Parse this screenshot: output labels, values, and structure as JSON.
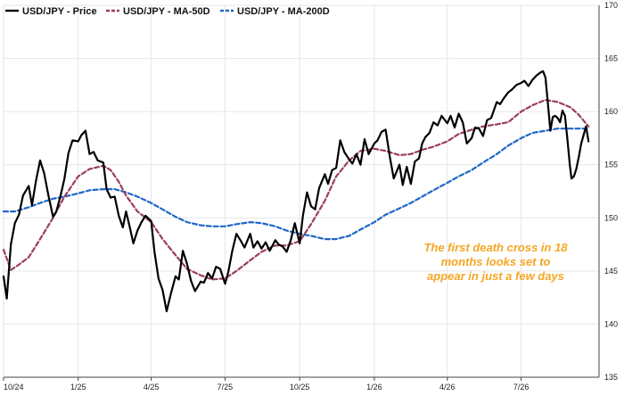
{
  "chart_data": {
    "type": "line",
    "title": "",
    "xlabel": "",
    "ylabel": "",
    "ylim": [
      135,
      170
    ],
    "y_ticks": [
      135,
      140,
      145,
      150,
      155,
      160,
      165,
      170
    ],
    "x_range": [
      "2024-10-01",
      "2026-10-05"
    ],
    "x_ticks": [
      {
        "label": "10/24",
        "date": "2024-10-01"
      },
      {
        "label": "1/25",
        "date": "2025-01-01"
      },
      {
        "label": "4/25",
        "date": "2025-04-01"
      },
      {
        "label": "7/25",
        "date": "2025-07-01"
      },
      {
        "label": "10/25",
        "date": "2025-10-01"
      },
      {
        "label": "1/26",
        "date": "2026-01-01"
      },
      {
        "label": "4/26",
        "date": "2026-04-01"
      },
      {
        "label": "7/26",
        "date": "2026-07-01"
      }
    ],
    "grid": true,
    "legend_position": "top-left",
    "annotation": {
      "lines": [
        "The first death cross in 18",
        "months looks set to",
        "appear in just a few days"
      ],
      "color": "#f5a623"
    },
    "series": [
      {
        "name": "USD/JPY - Price",
        "color": "#000000",
        "style": "solid",
        "points": [
          [
            "2024-10-01",
            144.5
          ],
          [
            "2024-10-05",
            142.4
          ],
          [
            "2024-10-10",
            147.5
          ],
          [
            "2024-10-15",
            149.5
          ],
          [
            "2024-10-20",
            150.3
          ],
          [
            "2024-10-25",
            152.1
          ],
          [
            "2024-11-01",
            153.0
          ],
          [
            "2024-11-05",
            151.2
          ],
          [
            "2024-11-10",
            153.5
          ],
          [
            "2024-11-15",
            155.4
          ],
          [
            "2024-11-20",
            154.2
          ],
          [
            "2024-11-25",
            152.2
          ],
          [
            "2024-12-01",
            150.1
          ],
          [
            "2024-12-05",
            150.6
          ],
          [
            "2024-12-10",
            152.0
          ],
          [
            "2024-12-15",
            153.7
          ],
          [
            "2024-12-20",
            156.1
          ],
          [
            "2024-12-25",
            157.3
          ],
          [
            "2025-01-01",
            157.2
          ],
          [
            "2025-01-05",
            157.8
          ],
          [
            "2025-01-10",
            158.2
          ],
          [
            "2025-01-15",
            156.0
          ],
          [
            "2025-01-20",
            156.2
          ],
          [
            "2025-01-25",
            155.4
          ],
          [
            "2025-02-01",
            155.2
          ],
          [
            "2025-02-05",
            152.7
          ],
          [
            "2025-02-10",
            151.9
          ],
          [
            "2025-02-15",
            152.0
          ],
          [
            "2025-02-20",
            150.2
          ],
          [
            "2025-02-25",
            149.1
          ],
          [
            "2025-03-01",
            150.6
          ],
          [
            "2025-03-05",
            149.3
          ],
          [
            "2025-03-10",
            147.6
          ],
          [
            "2025-03-15",
            148.8
          ],
          [
            "2025-03-20",
            149.6
          ],
          [
            "2025-03-25",
            150.2
          ],
          [
            "2025-04-01",
            149.7
          ],
          [
            "2025-04-05",
            146.8
          ],
          [
            "2025-04-10",
            144.3
          ],
          [
            "2025-04-15",
            143.2
          ],
          [
            "2025-04-20",
            141.2
          ],
          [
            "2025-04-25",
            142.8
          ],
          [
            "2025-05-01",
            144.5
          ],
          [
            "2025-05-05",
            144.2
          ],
          [
            "2025-05-10",
            146.9
          ],
          [
            "2025-05-15",
            145.7
          ],
          [
            "2025-05-20",
            144.1
          ],
          [
            "2025-05-25",
            143.1
          ],
          [
            "2025-06-01",
            144.0
          ],
          [
            "2025-06-05",
            143.9
          ],
          [
            "2025-06-10",
            144.8
          ],
          [
            "2025-06-15",
            144.3
          ],
          [
            "2025-06-20",
            145.4
          ],
          [
            "2025-06-25",
            145.2
          ],
          [
            "2025-07-01",
            143.8
          ],
          [
            "2025-07-05",
            144.9
          ],
          [
            "2025-07-10",
            146.9
          ],
          [
            "2025-07-15",
            148.5
          ],
          [
            "2025-07-20",
            147.9
          ],
          [
            "2025-07-25",
            147.2
          ],
          [
            "2025-08-01",
            148.5
          ],
          [
            "2025-08-05",
            147.2
          ],
          [
            "2025-08-10",
            147.8
          ],
          [
            "2025-08-15",
            147.1
          ],
          [
            "2025-08-20",
            147.7
          ],
          [
            "2025-08-25",
            146.9
          ],
          [
            "2025-09-01",
            147.9
          ],
          [
            "2025-09-05",
            147.5
          ],
          [
            "2025-09-10",
            147.3
          ],
          [
            "2025-09-15",
            146.8
          ],
          [
            "2025-09-20",
            147.9
          ],
          [
            "2025-09-25",
            149.5
          ],
          [
            "2025-10-01",
            147.6
          ],
          [
            "2025-10-05",
            150.2
          ],
          [
            "2025-10-10",
            152.4
          ],
          [
            "2025-10-15",
            151.1
          ],
          [
            "2025-10-20",
            150.8
          ],
          [
            "2025-10-25",
            152.8
          ],
          [
            "2025-11-01",
            154.1
          ],
          [
            "2025-11-05",
            153.2
          ],
          [
            "2025-11-10",
            154.5
          ],
          [
            "2025-11-15",
            154.7
          ],
          [
            "2025-11-20",
            157.3
          ],
          [
            "2025-11-25",
            156.2
          ],
          [
            "2025-12-01",
            155.5
          ],
          [
            "2025-12-05",
            155.1
          ],
          [
            "2025-12-10",
            156.0
          ],
          [
            "2025-12-15",
            155.0
          ],
          [
            "2025-12-20",
            157.4
          ],
          [
            "2025-12-25",
            156.0
          ],
          [
            "2026-01-01",
            157.0
          ],
          [
            "2026-01-05",
            157.3
          ],
          [
            "2026-01-10",
            158.1
          ],
          [
            "2026-01-15",
            158.3
          ],
          [
            "2026-01-20",
            155.8
          ],
          [
            "2026-01-25",
            153.7
          ],
          [
            "2026-02-01",
            155.0
          ],
          [
            "2026-02-05",
            153.1
          ],
          [
            "2026-02-10",
            154.8
          ],
          [
            "2026-02-15",
            153.2
          ],
          [
            "2026-02-20",
            155.3
          ],
          [
            "2026-02-25",
            155.6
          ],
          [
            "2026-03-01",
            157.0
          ],
          [
            "2026-03-05",
            157.6
          ],
          [
            "2026-03-10",
            158.0
          ],
          [
            "2026-03-15",
            159.0
          ],
          [
            "2026-03-20",
            158.7
          ],
          [
            "2026-03-25",
            159.6
          ],
          [
            "2026-04-01",
            158.9
          ],
          [
            "2026-04-05",
            159.6
          ],
          [
            "2026-04-10",
            158.5
          ],
          [
            "2026-04-15",
            159.8
          ],
          [
            "2026-04-20",
            159.0
          ],
          [
            "2026-04-25",
            157.0
          ],
          [
            "2026-05-01",
            157.5
          ],
          [
            "2026-05-05",
            158.5
          ],
          [
            "2026-05-10",
            158.4
          ],
          [
            "2026-05-15",
            157.7
          ],
          [
            "2026-05-20",
            159.2
          ],
          [
            "2026-05-25",
            159.4
          ],
          [
            "2026-06-01",
            160.9
          ],
          [
            "2026-06-05",
            160.7
          ],
          [
            "2026-06-10",
            161.3
          ],
          [
            "2026-06-15",
            161.8
          ],
          [
            "2026-06-20",
            162.1
          ],
          [
            "2026-06-25",
            162.5
          ],
          [
            "2026-07-01",
            162.7
          ],
          [
            "2026-07-05",
            162.9
          ],
          [
            "2026-07-10",
            162.4
          ],
          [
            "2026-07-15",
            163.0
          ],
          [
            "2026-07-20",
            163.4
          ],
          [
            "2026-07-25",
            163.7
          ],
          [
            "2026-07-28",
            163.8
          ],
          [
            "2026-07-31",
            163.2
          ],
          [
            "2026-08-03",
            160.7
          ],
          [
            "2026-08-06",
            158.2
          ],
          [
            "2026-08-09",
            159.5
          ],
          [
            "2026-08-12",
            159.6
          ],
          [
            "2026-08-15",
            159.4
          ],
          [
            "2026-08-18",
            159.0
          ],
          [
            "2026-08-21",
            160.1
          ],
          [
            "2026-08-24",
            159.6
          ],
          [
            "2026-08-27",
            157.4
          ],
          [
            "2026-08-30",
            155.0
          ],
          [
            "2026-09-01",
            153.7
          ],
          [
            "2026-09-04",
            153.9
          ],
          [
            "2026-09-07",
            154.6
          ],
          [
            "2026-09-10",
            155.7
          ],
          [
            "2026-09-13",
            157.0
          ],
          [
            "2026-09-16",
            157.8
          ],
          [
            "2026-09-19",
            158.6
          ],
          [
            "2026-09-22",
            157.2
          ]
        ]
      },
      {
        "name": "USD/JPY - MA-50D",
        "color": "#9a3d5b",
        "style": "dashed",
        "points": [
          [
            "2024-10-01",
            147.0
          ],
          [
            "2024-10-10",
            145.1
          ],
          [
            "2024-10-20",
            145.6
          ],
          [
            "2024-11-01",
            146.3
          ],
          [
            "2024-11-15",
            148.0
          ],
          [
            "2024-12-01",
            150.0
          ],
          [
            "2024-12-15",
            152.0
          ],
          [
            "2025-01-01",
            153.9
          ],
          [
            "2025-01-15",
            154.6
          ],
          [
            "2025-02-01",
            154.9
          ],
          [
            "2025-02-10",
            154.5
          ],
          [
            "2025-02-20",
            153.4
          ],
          [
            "2025-03-01",
            152.1
          ],
          [
            "2025-03-15",
            150.6
          ],
          [
            "2025-04-01",
            149.6
          ],
          [
            "2025-04-15",
            148.0
          ],
          [
            "2025-05-01",
            146.5
          ],
          [
            "2025-05-15",
            145.2
          ],
          [
            "2025-06-01",
            144.6
          ],
          [
            "2025-06-15",
            144.2
          ],
          [
            "2025-07-01",
            144.3
          ],
          [
            "2025-07-15",
            145.0
          ],
          [
            "2025-08-01",
            146.0
          ],
          [
            "2025-08-15",
            146.8
          ],
          [
            "2025-09-01",
            147.4
          ],
          [
            "2025-09-15",
            147.4
          ],
          [
            "2025-10-01",
            147.8
          ],
          [
            "2025-10-15",
            149.4
          ],
          [
            "2025-11-01",
            151.6
          ],
          [
            "2025-11-15",
            153.9
          ],
          [
            "2025-12-01",
            155.4
          ],
          [
            "2025-12-15",
            156.3
          ],
          [
            "2026-01-01",
            156.5
          ],
          [
            "2026-01-15",
            156.3
          ],
          [
            "2026-02-01",
            155.9
          ],
          [
            "2026-02-15",
            156.0
          ],
          [
            "2026-03-01",
            156.4
          ],
          [
            "2026-03-15",
            156.7
          ],
          [
            "2026-04-01",
            157.2
          ],
          [
            "2026-04-15",
            157.9
          ],
          [
            "2026-05-01",
            158.3
          ],
          [
            "2026-05-15",
            158.6
          ],
          [
            "2026-06-01",
            158.8
          ],
          [
            "2026-06-15",
            159.0
          ],
          [
            "2026-07-01",
            160.0
          ],
          [
            "2026-07-15",
            160.6
          ],
          [
            "2026-07-31",
            161.1
          ],
          [
            "2026-08-15",
            160.9
          ],
          [
            "2026-08-31",
            160.4
          ],
          [
            "2026-09-10",
            159.7
          ],
          [
            "2026-09-22",
            158.6
          ]
        ]
      },
      {
        "name": "USD/JPY - MA-200D",
        "color": "#1f66c8",
        "style": "dashed",
        "points": [
          [
            "2024-10-01",
            150.6
          ],
          [
            "2024-10-15",
            150.6
          ],
          [
            "2024-11-01",
            151.0
          ],
          [
            "2024-11-15",
            151.4
          ],
          [
            "2024-12-01",
            151.8
          ],
          [
            "2024-12-15",
            152.0
          ],
          [
            "2025-01-01",
            152.3
          ],
          [
            "2025-01-15",
            152.6
          ],
          [
            "2025-02-01",
            152.7
          ],
          [
            "2025-02-15",
            152.7
          ],
          [
            "2025-03-01",
            152.4
          ],
          [
            "2025-03-15",
            152.0
          ],
          [
            "2025-04-01",
            151.4
          ],
          [
            "2025-04-15",
            150.8
          ],
          [
            "2025-05-01",
            150.1
          ],
          [
            "2025-05-15",
            149.6
          ],
          [
            "2025-06-01",
            149.3
          ],
          [
            "2025-06-15",
            149.2
          ],
          [
            "2025-07-01",
            149.2
          ],
          [
            "2025-07-15",
            149.4
          ],
          [
            "2025-08-01",
            149.6
          ],
          [
            "2025-08-15",
            149.5
          ],
          [
            "2025-09-01",
            149.2
          ],
          [
            "2025-09-15",
            148.8
          ],
          [
            "2025-10-01",
            148.5
          ],
          [
            "2025-10-15",
            148.3
          ],
          [
            "2025-11-01",
            148.0
          ],
          [
            "2025-11-15",
            148.0
          ],
          [
            "2025-12-01",
            148.3
          ],
          [
            "2025-12-15",
            148.9
          ],
          [
            "2026-01-01",
            149.6
          ],
          [
            "2026-01-15",
            150.3
          ],
          [
            "2026-02-01",
            150.9
          ],
          [
            "2026-02-15",
            151.4
          ],
          [
            "2026-03-01",
            152.0
          ],
          [
            "2026-03-15",
            152.6
          ],
          [
            "2026-04-01",
            153.3
          ],
          [
            "2026-04-15",
            153.9
          ],
          [
            "2026-05-01",
            154.5
          ],
          [
            "2026-05-15",
            155.2
          ],
          [
            "2026-06-01",
            156.0
          ],
          [
            "2026-06-15",
            156.8
          ],
          [
            "2026-07-01",
            157.5
          ],
          [
            "2026-07-15",
            158.0
          ],
          [
            "2026-07-31",
            158.2
          ],
          [
            "2026-08-15",
            158.4
          ],
          [
            "2026-08-31",
            158.4
          ],
          [
            "2026-09-15",
            158.4
          ],
          [
            "2026-09-22",
            158.4
          ]
        ]
      }
    ]
  }
}
